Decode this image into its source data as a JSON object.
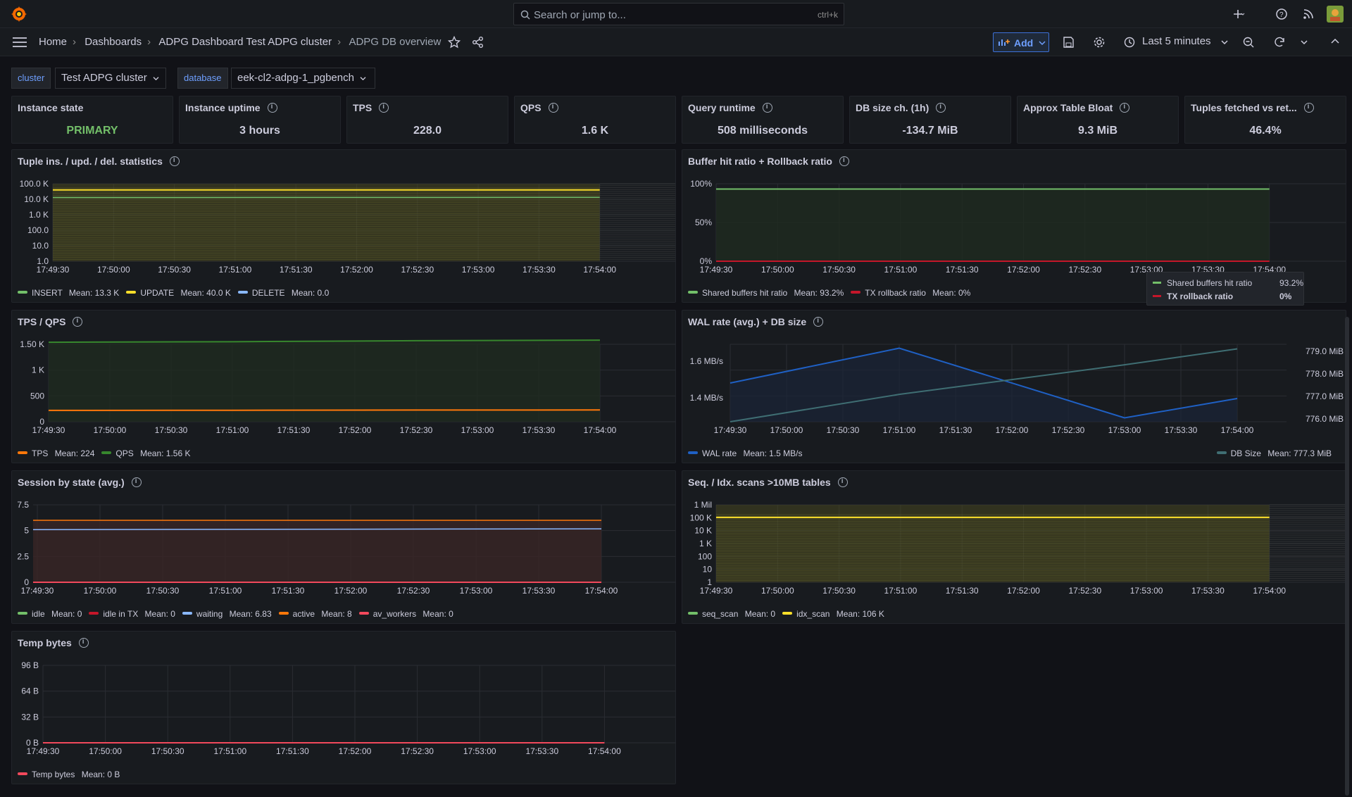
{
  "topbar": {
    "search_placeholder": "Search or jump to...",
    "search_shortcut": "ctrl+k"
  },
  "breadcrumb": [
    "Home",
    "Dashboards",
    "ADPG Dashboard Test ADPG cluster",
    "ADPG DB overview"
  ],
  "toolbar": {
    "add_label": "Add",
    "time_range": "Last 5 minutes"
  },
  "variables": {
    "cluster_label": "cluster",
    "cluster_value": "Test ADPG cluster",
    "database_label": "database",
    "database_value": "eek-cl2-adpg-1_pgbench"
  },
  "stats": [
    {
      "title": "Instance state",
      "value": "PRIMARY",
      "color": "#73bf69",
      "info": false
    },
    {
      "title": "Instance uptime",
      "value": "3 hours",
      "color": "#ccccdc",
      "info": true
    },
    {
      "title": "TPS",
      "value": "228.0",
      "color": "#ccccdc",
      "info": true
    },
    {
      "title": "QPS",
      "value": "1.6 K",
      "color": "#ccccdc",
      "info": true
    },
    {
      "title": "Query runtime",
      "value": "508 milliseconds",
      "color": "#ccccdc",
      "info": true
    },
    {
      "title": "DB size ch. (1h)",
      "value": "-134.7 MiB",
      "color": "#ccccdc",
      "info": true
    },
    {
      "title": "Approx Table Bloat",
      "value": "9.3 MiB",
      "color": "#ccccdc",
      "info": true
    },
    {
      "title": "Tuples fetched vs ret...",
      "value": "46.4%",
      "color": "#ccccdc",
      "info": true
    }
  ],
  "time_axis": [
    "17:49:30",
    "17:50:00",
    "17:50:30",
    "17:51:00",
    "17:51:30",
    "17:52:00",
    "17:52:30",
    "17:53:00",
    "17:53:30",
    "17:54:00"
  ],
  "panels": {
    "tuples": {
      "title": "Tuple ins. / upd. / del. statistics",
      "yticks": [
        "100.0 K",
        "10.0 K",
        "1.0 K",
        "100.0",
        "10.0",
        "1.0"
      ],
      "legend": [
        {
          "name": "INSERT",
          "mean": "Mean: 13.3 K",
          "color": "#73bf69"
        },
        {
          "name": "UPDATE",
          "mean": "Mean: 40.0 K",
          "color": "#fade2a"
        },
        {
          "name": "DELETE",
          "mean": "Mean: 0.0",
          "color": "#8ab8ff"
        }
      ]
    },
    "buffer": {
      "title": "Buffer hit ratio + Rollback ratio",
      "yticks": [
        "100%",
        "50%",
        "0%"
      ],
      "legend": [
        {
          "name": "Shared buffers hit ratio",
          "mean": "Mean: 93.2%",
          "color": "#73bf69"
        },
        {
          "name": "TX rollback ratio",
          "mean": "Mean: 0%",
          "color": "#c4162a"
        }
      ],
      "tooltip": [
        {
          "name": "Shared buffers hit ratio",
          "value": "93.2%",
          "color": "#73bf69"
        },
        {
          "name": "TX rollback ratio",
          "value": "0%",
          "color": "#c4162a"
        }
      ]
    },
    "tps": {
      "title": "TPS / QPS",
      "yticks": [
        "1.50 K",
        "1 K",
        "500",
        "0"
      ],
      "legend": [
        {
          "name": "TPS",
          "mean": "Mean: 224",
          "color": "#ff780a"
        },
        {
          "name": "QPS",
          "mean": "Mean: 1.56 K",
          "color": "#37872d"
        }
      ]
    },
    "wal": {
      "title": "WAL rate (avg.) + DB size",
      "yticks_left": [
        "1.6 MB/s",
        "1.4 MB/s"
      ],
      "yticks_right": [
        "779.0 MiB",
        "778.0 MiB",
        "777.0 MiB",
        "776.0 MiB"
      ],
      "legend_left": {
        "name": "WAL rate",
        "mean": "Mean: 1.5 MB/s",
        "color": "#1f60c4"
      },
      "legend_right": {
        "name": "DB Size",
        "mean": "Mean: 777.3 MiB",
        "color": "#3f6e73"
      }
    },
    "session": {
      "title": "Session by state (avg.)",
      "yticks": [
        "7.5",
        "5",
        "2.5",
        "0"
      ],
      "legend": [
        {
          "name": "idle",
          "mean": "Mean: 0",
          "color": "#73bf69"
        },
        {
          "name": "idle in TX",
          "mean": "Mean: 0",
          "color": "#c4162a"
        },
        {
          "name": "waiting",
          "mean": "Mean: 6.83",
          "color": "#8ab8ff"
        },
        {
          "name": "active",
          "mean": "Mean: 8",
          "color": "#ff780a"
        },
        {
          "name": "av_workers",
          "mean": "Mean: 0",
          "color": "#f2495c"
        }
      ]
    },
    "scans": {
      "title": "Seq. / Idx. scans >10MB tables",
      "yticks": [
        "1 Mil",
        "100 K",
        "10 K",
        "1 K",
        "100",
        "10",
        "1"
      ],
      "legend": [
        {
          "name": "seq_scan",
          "mean": "Mean: 0",
          "color": "#73bf69"
        },
        {
          "name": "idx_scan",
          "mean": "Mean: 106 K",
          "color": "#fade2a"
        }
      ]
    },
    "temp": {
      "title": "Temp bytes",
      "yticks": [
        "96 B",
        "64 B",
        "32 B",
        "0 B"
      ],
      "legend": [
        {
          "name": "Temp bytes",
          "mean": "Mean: 0 B",
          "color": "#f2495c"
        }
      ]
    }
  },
  "chart_data": [
    {
      "type": "line",
      "title": "Tuple ins. / upd. / del. statistics",
      "x": [
        "17:49:30",
        "17:54:00"
      ],
      "log_scale": true,
      "series": [
        {
          "name": "INSERT",
          "values": [
            13000,
            13300
          ]
        },
        {
          "name": "UPDATE",
          "values": [
            40000,
            40000
          ]
        },
        {
          "name": "DELETE",
          "values": [
            0,
            0
          ]
        }
      ]
    },
    {
      "type": "line",
      "title": "Buffer hit ratio + Rollback ratio",
      "x": [
        "17:49:30",
        "17:54:00"
      ],
      "series": [
        {
          "name": "Shared buffers hit ratio",
          "values": [
            93.2,
            93.2
          ]
        },
        {
          "name": "TX rollback ratio",
          "values": [
            0,
            0
          ]
        }
      ]
    },
    {
      "type": "line",
      "title": "TPS / QPS",
      "x": [
        "17:49:30",
        "17:51:00",
        "17:52:30",
        "17:54:00"
      ],
      "series": [
        {
          "name": "TPS",
          "values": [
            220,
            222,
            226,
            228
          ]
        },
        {
          "name": "QPS",
          "values": [
            1540,
            1550,
            1570,
            1580
          ]
        }
      ]
    },
    {
      "type": "line",
      "title": "WAL rate (avg.) + DB size",
      "x": [
        "17:49:30",
        "17:51:00",
        "17:53:00",
        "17:54:00"
      ],
      "series": [
        {
          "name": "WAL rate",
          "values": [
            1.5,
            1.68,
            1.32,
            1.42
          ]
        },
        {
          "name": "DB Size",
          "values": [
            775.8,
            777.0,
            778.3,
            779.0
          ]
        }
      ]
    },
    {
      "type": "area",
      "title": "Session by state (avg.)",
      "x": [
        "17:49:30",
        "17:54:00"
      ],
      "series": [
        {
          "name": "idle",
          "values": [
            0,
            0
          ]
        },
        {
          "name": "idle in TX",
          "values": [
            0,
            0
          ]
        },
        {
          "name": "waiting",
          "values": [
            6.8,
            6.9
          ]
        },
        {
          "name": "active",
          "values": [
            8,
            8
          ]
        },
        {
          "name": "av_workers",
          "values": [
            0,
            0
          ]
        }
      ]
    },
    {
      "type": "line",
      "title": "Seq. / Idx. scans >10MB tables",
      "x": [
        "17:49:30",
        "17:54:00"
      ],
      "log_scale": true,
      "series": [
        {
          "name": "seq_scan",
          "values": [
            0,
            0
          ]
        },
        {
          "name": "idx_scan",
          "values": [
            106000,
            106000
          ]
        }
      ]
    },
    {
      "type": "line",
      "title": "Temp bytes",
      "x": [
        "17:49:30",
        "17:54:00"
      ],
      "series": [
        {
          "name": "Temp bytes",
          "values": [
            0,
            0
          ]
        }
      ]
    }
  ]
}
